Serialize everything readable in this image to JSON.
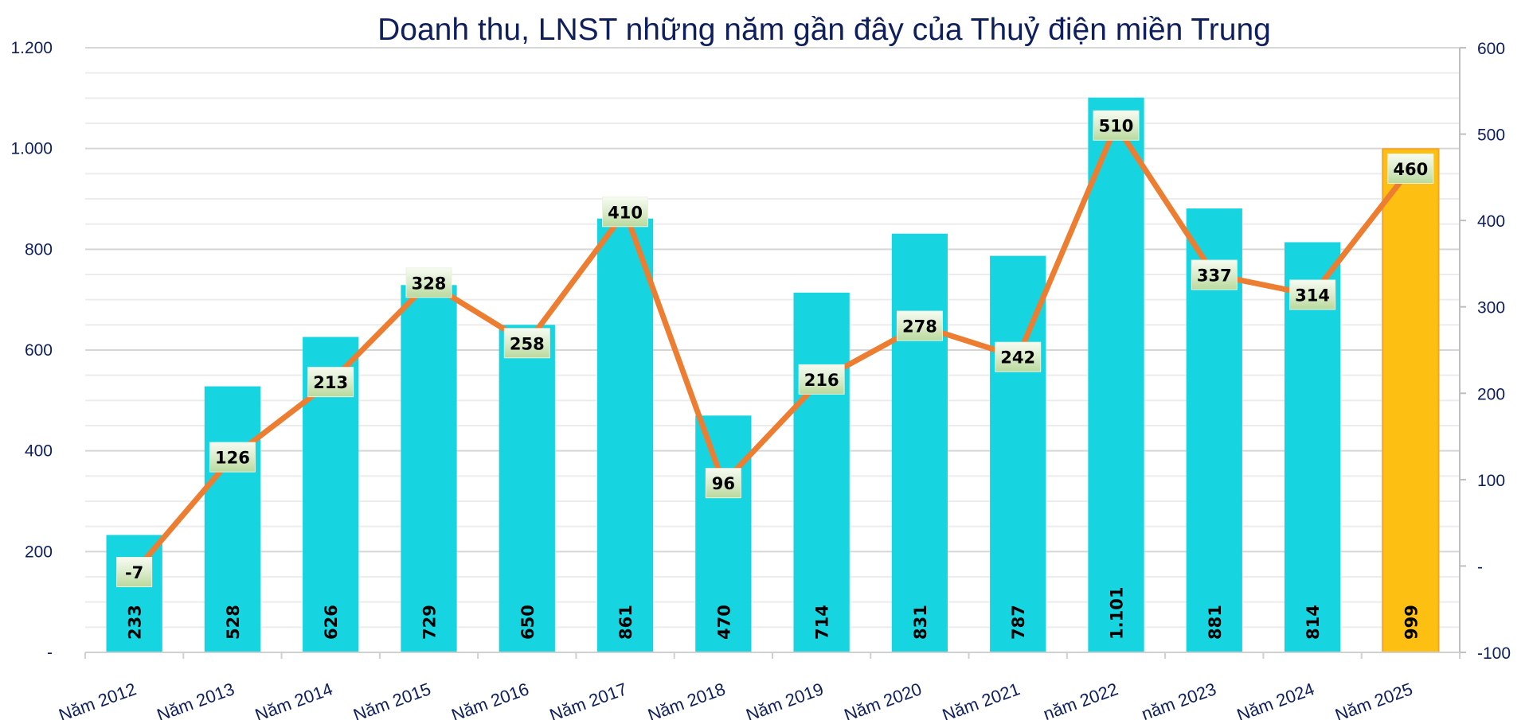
{
  "chart_data": {
    "type": "bar+line",
    "title": "Doanh thu, LNST những năm gần đây của Thuỷ điện miền Trung",
    "categories": [
      "Năm 2012",
      "Năm 2013",
      "Năm 2014",
      "Năm 2015",
      "Năm 2016",
      "Năm 2017",
      "Năm 2018",
      "Năm 2019",
      "Năm 2020",
      "Năm 2021",
      "năm 2022",
      "năm 2023",
      "Năm 2024",
      "Năm 2025"
    ],
    "series": [
      {
        "type": "bar",
        "axis": "left",
        "values": [
          233,
          528,
          626,
          729,
          650,
          861,
          470,
          714,
          831,
          787,
          1101,
          881,
          814,
          999
        ],
        "labels": [
          "233",
          "528",
          "626",
          "729",
          "650",
          "861",
          "470",
          "714",
          "831",
          "787",
          "1.101",
          "881",
          "814",
          "999"
        ],
        "color": "#17d5e0",
        "highlight_color": "#fdbf12",
        "highlight_index": 13
      },
      {
        "type": "line",
        "axis": "right",
        "values": [
          -7,
          126,
          213,
          328,
          258,
          410,
          96,
          216,
          278,
          242,
          510,
          337,
          314,
          460
        ],
        "labels": [
          "-7",
          "126",
          "213",
          "328",
          "258",
          "410",
          "96",
          "216",
          "278",
          "242",
          "510",
          "337",
          "314",
          "460"
        ],
        "color": "#ed7d31"
      }
    ],
    "y_left": {
      "min": 0,
      "max": 1200,
      "ticks": [
        0,
        200,
        400,
        600,
        800,
        1000,
        1200
      ],
      "tick_labels": [
        "-",
        "200",
        "400",
        "600",
        "800",
        "1.000",
        "1.200"
      ]
    },
    "y_right": {
      "min": -100,
      "max": 600,
      "ticks": [
        -100,
        0,
        100,
        200,
        300,
        400,
        500,
        600
      ],
      "tick_labels": [
        "-100",
        "-",
        "100",
        "200",
        "300",
        "400",
        "500",
        "600"
      ]
    },
    "grid": true,
    "legend": "none"
  }
}
